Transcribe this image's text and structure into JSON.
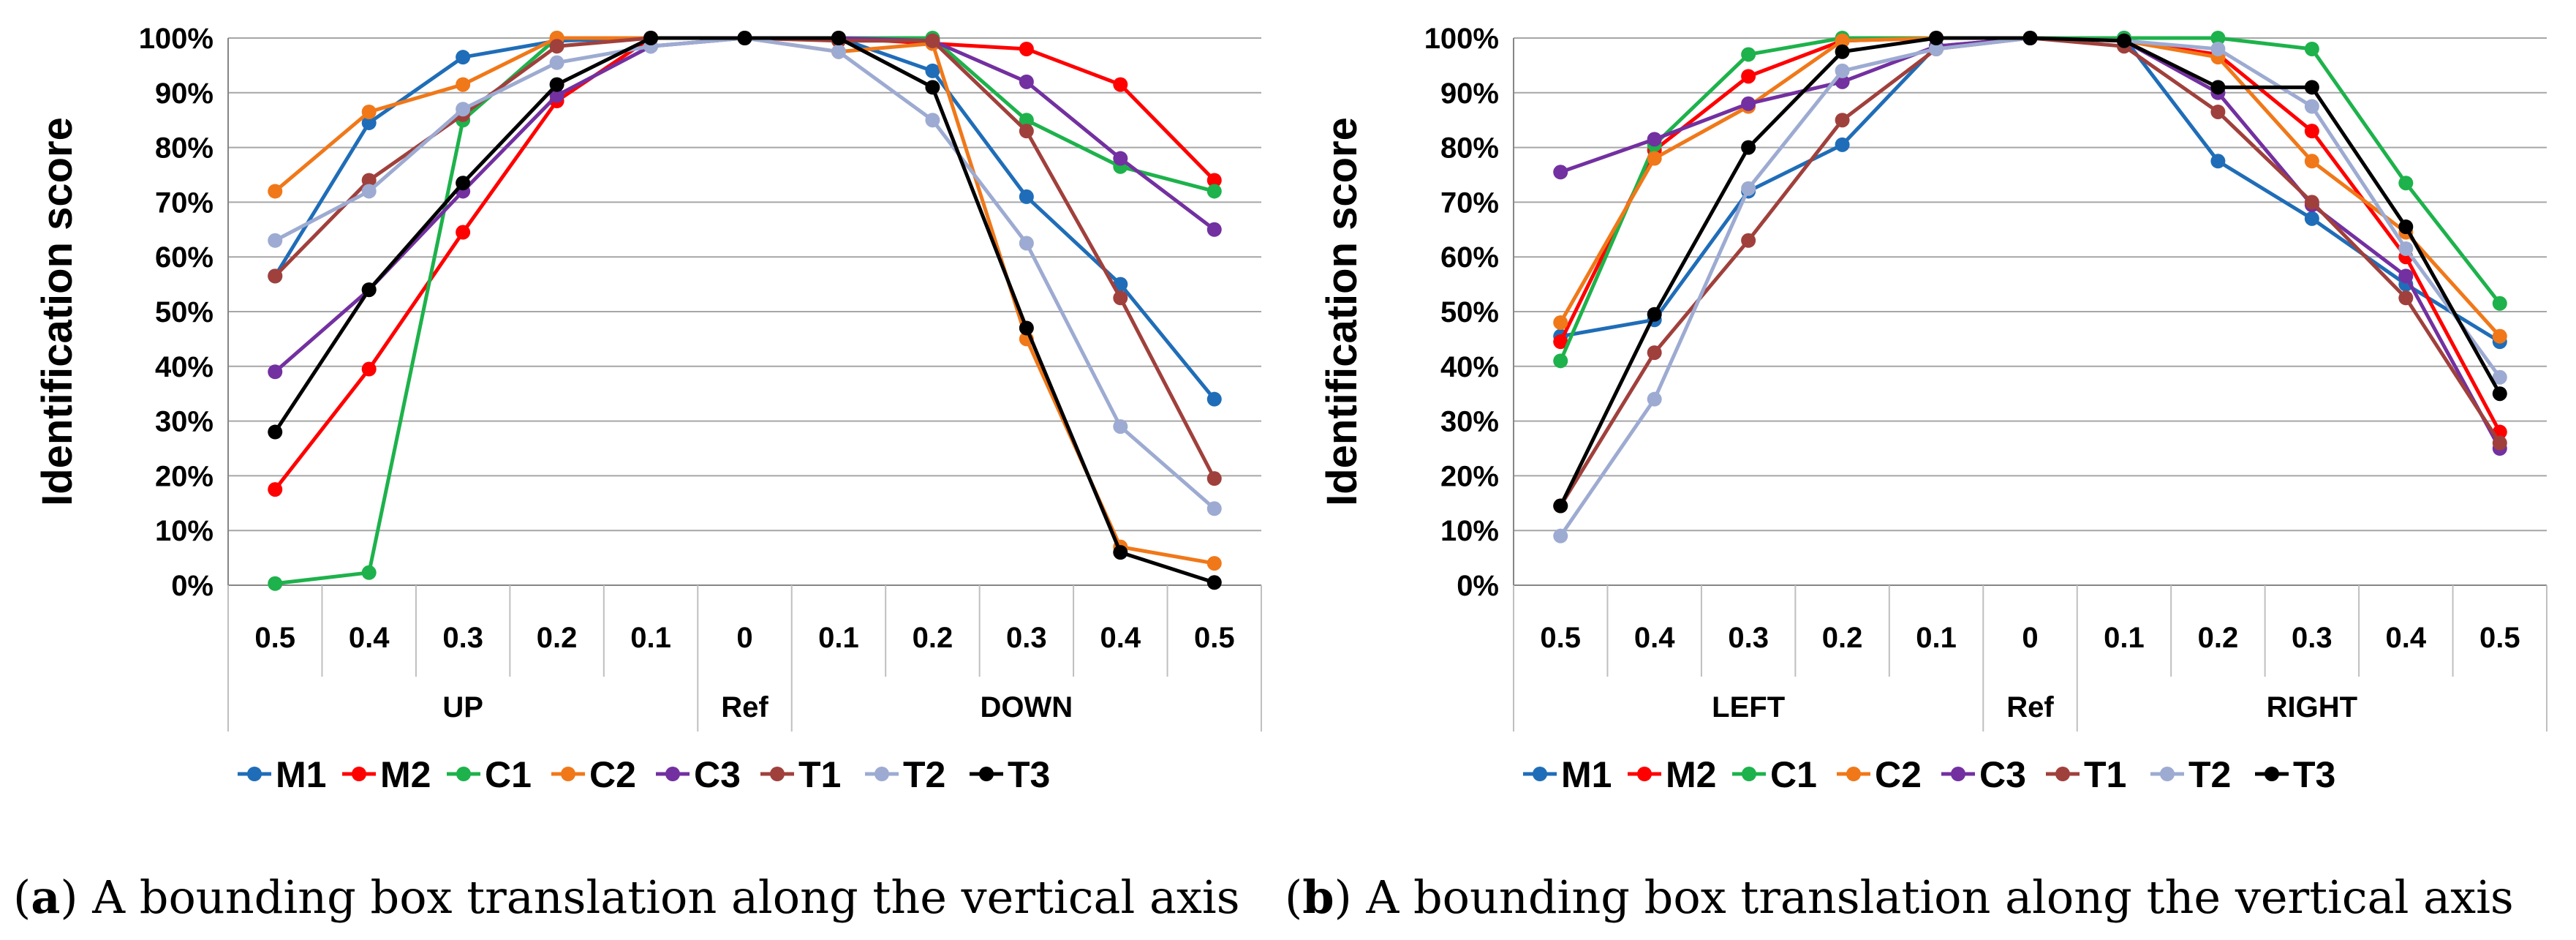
{
  "figure": {
    "caption_a_letter": "a",
    "caption_a_text": "A bounding box translation along the vertical axis",
    "caption_b_letter": "b",
    "caption_b_text": "A bounding box translation along the vertical axis"
  },
  "chart_data": [
    {
      "type": "line",
      "panel": "a",
      "ylabel": "Identification score",
      "ylim": [
        0,
        100
      ],
      "y_ticks": [
        "0%",
        "10%",
        "20%",
        "30%",
        "40%",
        "50%",
        "60%",
        "70%",
        "80%",
        "90%",
        "100%"
      ],
      "categories": [
        "0.5",
        "0.4",
        "0.3",
        "0.2",
        "0.1",
        "0",
        "0.1",
        "0.2",
        "0.3",
        "0.4",
        "0.5"
      ],
      "groups": [
        {
          "label": "UP",
          "span": [
            0,
            4
          ]
        },
        {
          "label": "Ref",
          "span": [
            5,
            5
          ]
        },
        {
          "label": "DOWN",
          "span": [
            6,
            10
          ]
        }
      ],
      "legend_position": "bottom",
      "series": [
        {
          "name": "M1",
          "color": "#1F6DB8",
          "values": [
            56.5,
            84.5,
            96.5,
            99.5,
            100,
            100,
            100,
            94,
            71,
            55,
            34
          ]
        },
        {
          "name": "M2",
          "color": "#FF0000",
          "values": [
            17.5,
            39.5,
            64.5,
            88.5,
            100,
            100,
            100,
            99,
            98,
            91.5,
            74
          ]
        },
        {
          "name": "C1",
          "color": "#1DB24B",
          "values": [
            0.3,
            2.3,
            85,
            100,
            100,
            100,
            100,
            100,
            85,
            76.5,
            72
          ]
        },
        {
          "name": "C2",
          "color": "#F07819",
          "values": [
            72,
            86.5,
            91.5,
            100,
            100,
            100,
            97.5,
            99,
            45,
            7,
            4
          ]
        },
        {
          "name": "C3",
          "color": "#7330A0",
          "values": [
            39,
            54,
            72,
            89.5,
            98.5,
            100,
            100,
            99.5,
            92,
            78,
            65
          ]
        },
        {
          "name": "T1",
          "color": "#A0403C",
          "values": [
            56.5,
            74,
            86,
            98.5,
            100,
            100,
            99.5,
            99.5,
            83,
            52.5,
            19.5
          ]
        },
        {
          "name": "T2",
          "color": "#9DABD2",
          "values": [
            63,
            72,
            87,
            95.5,
            98.5,
            100,
            97.5,
            85,
            62.5,
            29,
            14
          ]
        },
        {
          "name": "T3",
          "color": "#000000",
          "values": [
            28,
            54,
            73.5,
            91.5,
            100,
            100,
            100,
            91,
            47,
            6,
            0.5
          ]
        }
      ]
    },
    {
      "type": "line",
      "panel": "b",
      "ylabel": "Identification score",
      "ylim": [
        0,
        100
      ],
      "y_ticks": [
        "0%",
        "10%",
        "20%",
        "30%",
        "40%",
        "50%",
        "60%",
        "70%",
        "80%",
        "90%",
        "100%"
      ],
      "categories": [
        "0.5",
        "0.4",
        "0.3",
        "0.2",
        "0.1",
        "0",
        "0.1",
        "0.2",
        "0.3",
        "0.4",
        "0.5"
      ],
      "groups": [
        {
          "label": "LEFT",
          "span": [
            0,
            4
          ]
        },
        {
          "label": "Ref",
          "span": [
            5,
            5
          ]
        },
        {
          "label": "RIGHT",
          "span": [
            6,
            10
          ]
        }
      ],
      "legend_position": "bottom",
      "series": [
        {
          "name": "M1",
          "color": "#1F6DB8",
          "values": [
            45.5,
            48.5,
            72,
            80.5,
            98.5,
            100,
            100,
            77.5,
            67,
            55,
            44.5
          ]
        },
        {
          "name": "M2",
          "color": "#FF0000",
          "values": [
            44.5,
            79.5,
            93,
            99.5,
            100,
            100,
            99.5,
            97,
            83,
            60,
            28
          ]
        },
        {
          "name": "C1",
          "color": "#1DB24B",
          "values": [
            41,
            80.5,
            97,
            100,
            100,
            100,
            100,
            100,
            98,
            73.5,
            51.5
          ]
        },
        {
          "name": "C2",
          "color": "#F07819",
          "values": [
            48,
            78,
            87.5,
            99.5,
            100,
            100,
            99.5,
            96.5,
            77.5,
            64.5,
            45.5
          ]
        },
        {
          "name": "C3",
          "color": "#7330A0",
          "values": [
            75.5,
            81.5,
            88,
            92,
            98.5,
            100,
            99.5,
            90,
            69.5,
            56.5,
            25
          ]
        },
        {
          "name": "T1",
          "color": "#A0403C",
          "values": [
            14.5,
            42.5,
            63,
            85,
            98,
            100,
            98.5,
            86.5,
            70,
            52.5,
            26
          ]
        },
        {
          "name": "T2",
          "color": "#9DABD2",
          "values": [
            9,
            34,
            72.5,
            94,
            98,
            100,
            99.5,
            98,
            87.5,
            61.5,
            38
          ]
        },
        {
          "name": "T3",
          "color": "#000000",
          "values": [
            14.5,
            49.5,
            80,
            97.5,
            100,
            100,
            99.5,
            91,
            91,
            65.5,
            35
          ]
        }
      ]
    }
  ]
}
